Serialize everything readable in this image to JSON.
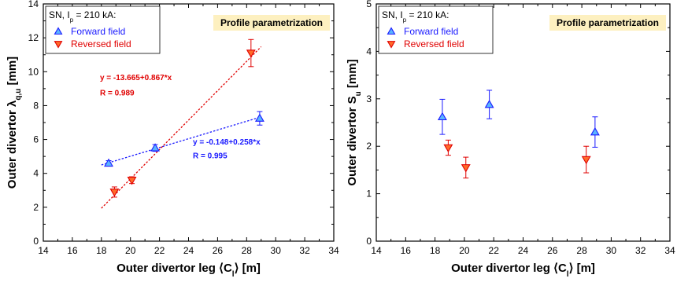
{
  "chart_data": [
    {
      "type": "scatter",
      "badge": "Profile parametrization",
      "legend_title": "SN, I_p = 210 kA:",
      "legend_title_main": "SN, I",
      "legend_title_sub": "p",
      "legend_title_rest": " = 210 kA:",
      "xlabel": "Outer divertor leg ⟨C",
      "xlabel_sub": "l",
      "xlabel_rest": "⟩  [m]",
      "ylabel": "Outer divertor λ",
      "ylabel_sub": "q,u",
      "ylabel_rest": " [mm]",
      "xlim": [
        14,
        34
      ],
      "ylim": [
        0,
        14
      ],
      "xticks": [
        14,
        16,
        18,
        20,
        22,
        24,
        26,
        28,
        30,
        32,
        34
      ],
      "yticks": [
        0,
        2,
        4,
        6,
        8,
        10,
        12,
        14
      ],
      "series": [
        {
          "name": "Forward field",
          "marker": "triangle-up",
          "color": "#1a1aff",
          "fill": "#5ab4ff",
          "x": [
            18.5,
            21.7,
            28.9
          ],
          "y": [
            4.6,
            5.5,
            7.25
          ],
          "err": [
            0.15,
            0.2,
            0.4
          ]
        },
        {
          "name": "Reversed field",
          "marker": "triangle-down",
          "color": "#e00000",
          "fill": "#ff6a2a",
          "x": [
            18.9,
            20.1,
            28.3
          ],
          "y": [
            2.9,
            3.6,
            11.1
          ],
          "err": [
            0.3,
            0.2,
            0.8
          ]
        }
      ],
      "fits": [
        {
          "color": "#1a1aff",
          "intercept": -0.148,
          "slope": 0.258,
          "x_range": [
            18.0,
            29.0
          ],
          "equation": "y = -0.148+0.258*x",
          "r": "R = 0.995"
        },
        {
          "color": "#e00000",
          "intercept": -13.665,
          "slope": 0.867,
          "x_range": [
            18.0,
            29.0
          ],
          "equation": "y = -13.665+0.867*x",
          "r": "R = 0.989"
        }
      ]
    },
    {
      "type": "scatter",
      "badge": "Profile parametrization",
      "legend_title": "SN, I_p = 210 kA:",
      "legend_title_main": "SN, I",
      "legend_title_sub": "p",
      "legend_title_rest": " = 210 kA:",
      "xlabel": "Outer divertor leg ⟨C",
      "xlabel_sub": "l",
      "xlabel_rest": "⟩  [m]",
      "ylabel": "Outer divertor S",
      "ylabel_sub": "u",
      "ylabel_rest": " [mm]",
      "xlim": [
        14,
        34
      ],
      "ylim": [
        0,
        5
      ],
      "xticks": [
        14,
        16,
        18,
        20,
        22,
        24,
        26,
        28,
        30,
        32,
        34
      ],
      "yticks": [
        0,
        1,
        2,
        3,
        4,
        5
      ],
      "series": [
        {
          "name": "Forward field",
          "marker": "triangle-up",
          "color": "#1a1aff",
          "fill": "#5ab4ff",
          "x": [
            18.5,
            21.7,
            28.9
          ],
          "y": [
            2.62,
            2.88,
            2.3
          ],
          "err": [
            0.37,
            0.3,
            0.32
          ]
        },
        {
          "name": "Reversed field",
          "marker": "triangle-down",
          "color": "#e00000",
          "fill": "#ff6a2a",
          "x": [
            18.9,
            20.1,
            28.3
          ],
          "y": [
            1.97,
            1.55,
            1.72
          ],
          "err": [
            0.16,
            0.22,
            0.28
          ]
        }
      ],
      "fits": []
    }
  ]
}
